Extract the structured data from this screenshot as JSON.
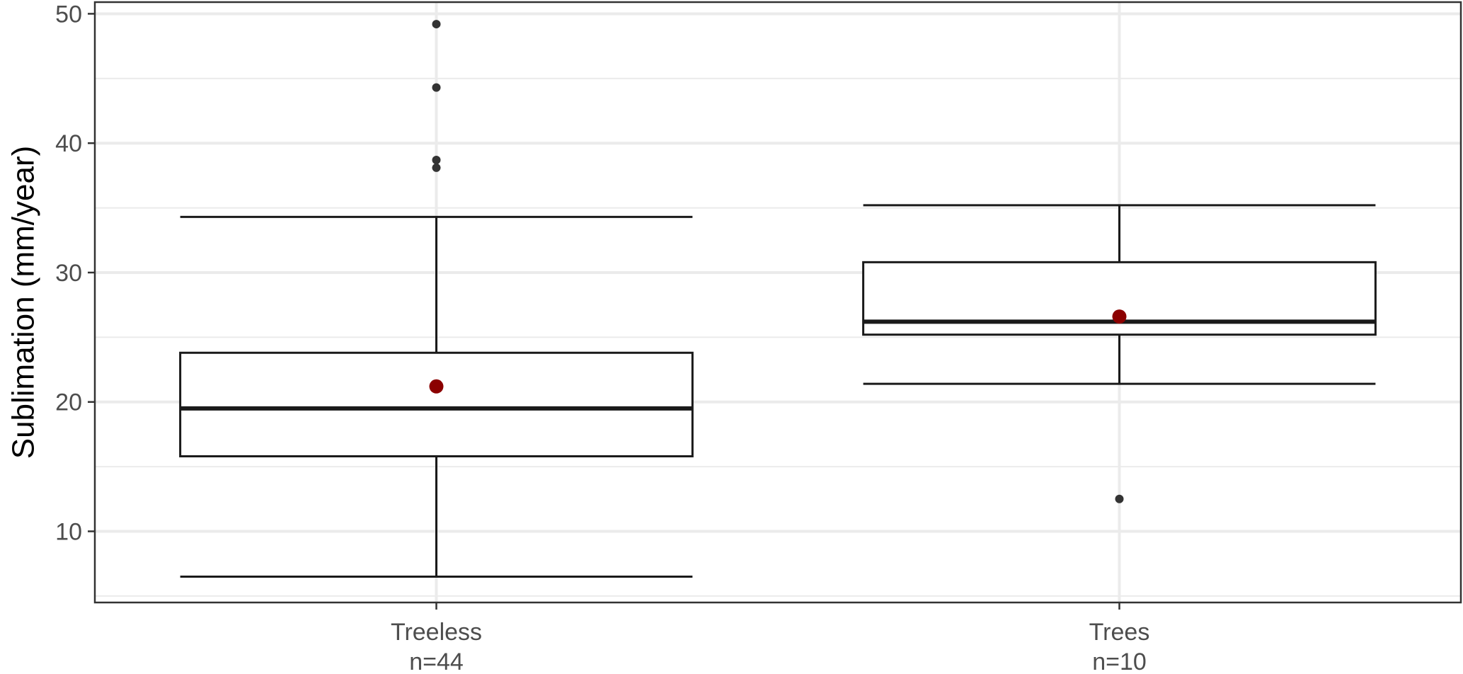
{
  "chart_data": {
    "type": "boxplot",
    "title": "",
    "xlabel": "",
    "ylabel": "Sublimation (mm/year)",
    "ylim": [
      4.5,
      50.9
    ],
    "y_ticks": [
      10,
      20,
      30,
      40,
      50
    ],
    "y_minor_ticks": [
      5,
      15,
      25,
      35,
      45
    ],
    "grid": true,
    "categories": [
      {
        "label": "Treeless",
        "sublabel": "n=44"
      },
      {
        "label": "Trees",
        "sublabel": "n=10"
      }
    ],
    "boxes": [
      {
        "whisker_low": 6.5,
        "q1": 15.8,
        "median": 19.5,
        "q3": 23.8,
        "whisker_high": 34.3,
        "mean": 21.2,
        "outliers": [
          38.1,
          38.7,
          44.3,
          49.2
        ]
      },
      {
        "whisker_low": 21.4,
        "q1": 25.2,
        "median": 26.2,
        "q3": 30.8,
        "whisker_high": 35.2,
        "mean": 26.6,
        "outliers": [
          12.5
        ]
      }
    ],
    "colors": {
      "mean_point": "#8b0000",
      "box_line": "#1a1a1a",
      "outlier": "#333333",
      "grid": "#ebebeb",
      "panel_border": "#333333"
    }
  }
}
